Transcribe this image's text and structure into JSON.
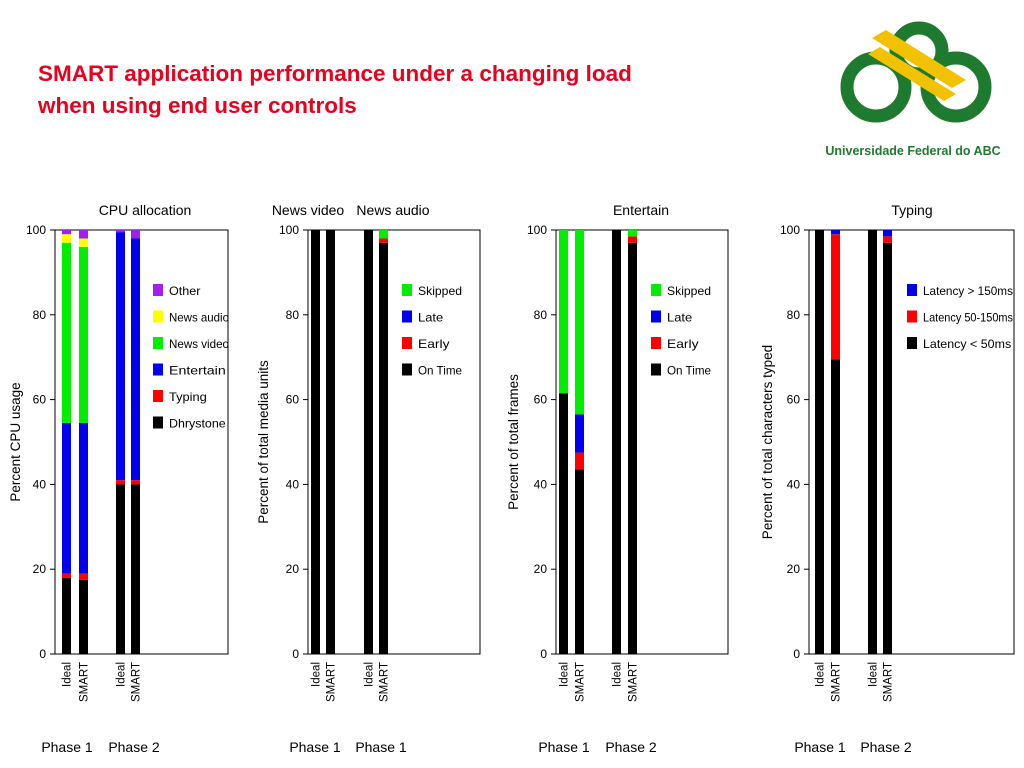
{
  "slide": {
    "title_line1": "SMART application performance under a changing load",
    "title_line2": "when using end user controls"
  },
  "logo": {
    "text": "Universidade Federal do ABC",
    "colors": {
      "green": "#1e7a2e",
      "yellow": "#f2c200"
    }
  },
  "colors": {
    "Other": "#a020f0",
    "News audio": "#ffff00",
    "News video": "#00ee00",
    "Entertain": "#0000ee",
    "Typing": "#ff0000",
    "Dhrystone": "#000000",
    "Skipped": "#00ee00",
    "Late": "#0000ee",
    "Early": "#ff0000",
    "On Time": "#000000",
    "Latency > 150ms": "#0000ee",
    "Latency 50-150ms": "#ff0000",
    "Latency < 50ms": "#000000"
  },
  "chart_data": [
    {
      "type": "bar",
      "stacked": true,
      "titles": [
        "CPU allocation"
      ],
      "ylabel": "Percent CPU usage",
      "ylim": [
        0,
        100
      ],
      "yticks": [
        0,
        20,
        40,
        60,
        80,
        100
      ],
      "legend_position": "right",
      "legend": [
        "Other",
        "News audio",
        "News video",
        "Entertain",
        "Typing",
        "Dhrystone"
      ],
      "bars": [
        {
          "label": "Ideal",
          "group": 0,
          "segments": [
            [
              "Dhrystone",
              18
            ],
            [
              "Typing",
              1
            ],
            [
              "Entertain",
              35.5
            ],
            [
              "News video",
              42.5
            ],
            [
              "News audio",
              2
            ],
            [
              "Other",
              1
            ]
          ]
        },
        {
          "label": "SMART",
          "group": 0,
          "segments": [
            [
              "Dhrystone",
              17.5
            ],
            [
              "Typing",
              1.5
            ],
            [
              "Entertain",
              35.5
            ],
            [
              "News video",
              41.5
            ],
            [
              "News audio",
              2
            ],
            [
              "Other",
              2
            ]
          ]
        },
        {
          "label": "Ideal",
          "group": 1,
          "segments": [
            [
              "Dhrystone",
              40
            ],
            [
              "Typing",
              1
            ],
            [
              "Entertain",
              58.5
            ],
            [
              "Other",
              0.5
            ]
          ]
        },
        {
          "label": "SMART",
          "group": 1,
          "segments": [
            [
              "Dhrystone",
              40
            ],
            [
              "Typing",
              1
            ],
            [
              "Entertain",
              57
            ],
            [
              "Other",
              2
            ]
          ]
        }
      ],
      "groups": [
        "Phase 1",
        "Phase 2"
      ]
    },
    {
      "type": "bar",
      "stacked": true,
      "titles": [
        "News video",
        "News audio"
      ],
      "ylabel": "Percent of total media units",
      "ylim": [
        0,
        100
      ],
      "yticks": [
        0,
        20,
        40,
        60,
        80,
        100
      ],
      "legend_position": "right",
      "legend": [
        "Skipped",
        "Late",
        "Early",
        "On Time"
      ],
      "bars": [
        {
          "label": "Ideal",
          "group": 0,
          "segments": [
            [
              "On Time",
              100
            ]
          ]
        },
        {
          "label": "SMART",
          "group": 0,
          "segments": [
            [
              "On Time",
              100
            ]
          ]
        },
        {
          "label": "Ideal",
          "group": 1,
          "segments": [
            [
              "On Time",
              100
            ]
          ]
        },
        {
          "label": "SMART",
          "group": 1,
          "segments": [
            [
              "On Time",
              97
            ],
            [
              "Early",
              1
            ],
            [
              "Skipped",
              2
            ]
          ]
        }
      ],
      "groups": [
        "Phase 1",
        "Phase 1"
      ]
    },
    {
      "type": "bar",
      "stacked": true,
      "titles": [
        "Entertain"
      ],
      "ylabel": "Percent of total frames",
      "ylim": [
        0,
        100
      ],
      "yticks": [
        0,
        20,
        40,
        60,
        80,
        100
      ],
      "legend_position": "right",
      "legend": [
        "Skipped",
        "Late",
        "Early",
        "On Time"
      ],
      "bars": [
        {
          "label": "Ideal",
          "group": 0,
          "segments": [
            [
              "On Time",
              61.5
            ],
            [
              "Skipped",
              38.5
            ]
          ]
        },
        {
          "label": "SMART",
          "group": 0,
          "segments": [
            [
              "On Time",
              43.5
            ],
            [
              "Early",
              4
            ],
            [
              "Late",
              9
            ],
            [
              "Skipped",
              43.5
            ]
          ]
        },
        {
          "label": "Ideal",
          "group": 1,
          "segments": [
            [
              "On Time",
              100
            ]
          ]
        },
        {
          "label": "SMART",
          "group": 1,
          "segments": [
            [
              "On Time",
              97
            ],
            [
              "Early",
              1.5
            ],
            [
              "Skipped",
              1.5
            ]
          ]
        }
      ],
      "groups": [
        "Phase 1",
        "Phase 2"
      ]
    },
    {
      "type": "bar",
      "stacked": true,
      "titles": [
        "Typing"
      ],
      "ylabel": "Percent of total characters typed",
      "ylim": [
        0,
        100
      ],
      "yticks": [
        0,
        20,
        40,
        60,
        80,
        100
      ],
      "legend_position": "right",
      "legend": [
        "Latency > 150ms",
        "Latency 50-150ms",
        "Latency < 50ms"
      ],
      "bars": [
        {
          "label": "Ideal",
          "group": 0,
          "segments": [
            [
              "Latency < 50ms",
              100
            ]
          ]
        },
        {
          "label": "SMART",
          "group": 0,
          "segments": [
            [
              "Latency < 50ms",
              69.5
            ],
            [
              "Latency 50-150ms",
              29.5
            ],
            [
              "Latency > 150ms",
              1
            ]
          ]
        },
        {
          "label": "Ideal",
          "group": 1,
          "segments": [
            [
              "Latency < 50ms",
              100
            ]
          ]
        },
        {
          "label": "SMART",
          "group": 1,
          "segments": [
            [
              "Latency < 50ms",
              97
            ],
            [
              "Latency 50-150ms",
              1.5
            ],
            [
              "Latency > 150ms",
              1.5
            ]
          ]
        }
      ],
      "groups": [
        "Phase 1",
        "Phase 2"
      ]
    }
  ]
}
